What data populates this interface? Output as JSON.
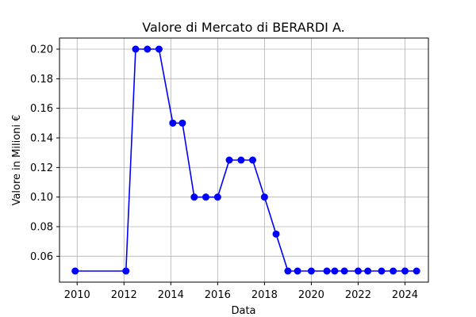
{
  "chart_data": {
    "type": "line",
    "title": "Valore di Mercato di BERARDI A.",
    "xlabel": "Data",
    "ylabel": "Valore in Milioni €",
    "x_tick_labels": [
      "2010",
      "2012",
      "2014",
      "2016",
      "2018",
      "2020",
      "2022",
      "2024"
    ],
    "y_tick_labels": [
      "0.06",
      "0.08",
      "0.10",
      "0.12",
      "0.14",
      "0.16",
      "0.18",
      "0.20"
    ],
    "xlim": [
      "2009-04-01",
      "2025-01-01"
    ],
    "ylim": [
      0.0425,
      0.2075
    ],
    "grid": true,
    "series": [
      {
        "color": "#0000ff",
        "marker": "circle",
        "points": [
          {
            "x": "2009-12-01",
            "y": 0.05
          },
          {
            "x": "2012-02-01",
            "y": 0.05
          },
          {
            "x": "2012-07-01",
            "y": 0.2
          },
          {
            "x": "2013-01-01",
            "y": 0.2
          },
          {
            "x": "2013-07-01",
            "y": 0.2
          },
          {
            "x": "2014-02-01",
            "y": 0.15
          },
          {
            "x": "2014-07-01",
            "y": 0.15
          },
          {
            "x": "2015-01-01",
            "y": 0.1
          },
          {
            "x": "2015-07-01",
            "y": 0.1
          },
          {
            "x": "2016-01-01",
            "y": 0.1
          },
          {
            "x": "2016-07-01",
            "y": 0.125
          },
          {
            "x": "2017-01-01",
            "y": 0.125
          },
          {
            "x": "2017-07-01",
            "y": 0.125
          },
          {
            "x": "2018-01-01",
            "y": 0.1
          },
          {
            "x": "2018-07-01",
            "y": 0.075
          },
          {
            "x": "2019-01-01",
            "y": 0.05
          },
          {
            "x": "2019-06-01",
            "y": 0.05
          },
          {
            "x": "2020-01-01",
            "y": 0.05
          },
          {
            "x": "2020-09-01",
            "y": 0.05
          },
          {
            "x": "2021-01-01",
            "y": 0.05
          },
          {
            "x": "2021-06-01",
            "y": 0.05
          },
          {
            "x": "2022-01-01",
            "y": 0.05
          },
          {
            "x": "2022-06-01",
            "y": 0.05
          },
          {
            "x": "2023-01-01",
            "y": 0.05
          },
          {
            "x": "2023-07-01",
            "y": 0.05
          },
          {
            "x": "2024-01-01",
            "y": 0.05
          },
          {
            "x": "2024-07-01",
            "y": 0.05
          }
        ]
      }
    ]
  }
}
